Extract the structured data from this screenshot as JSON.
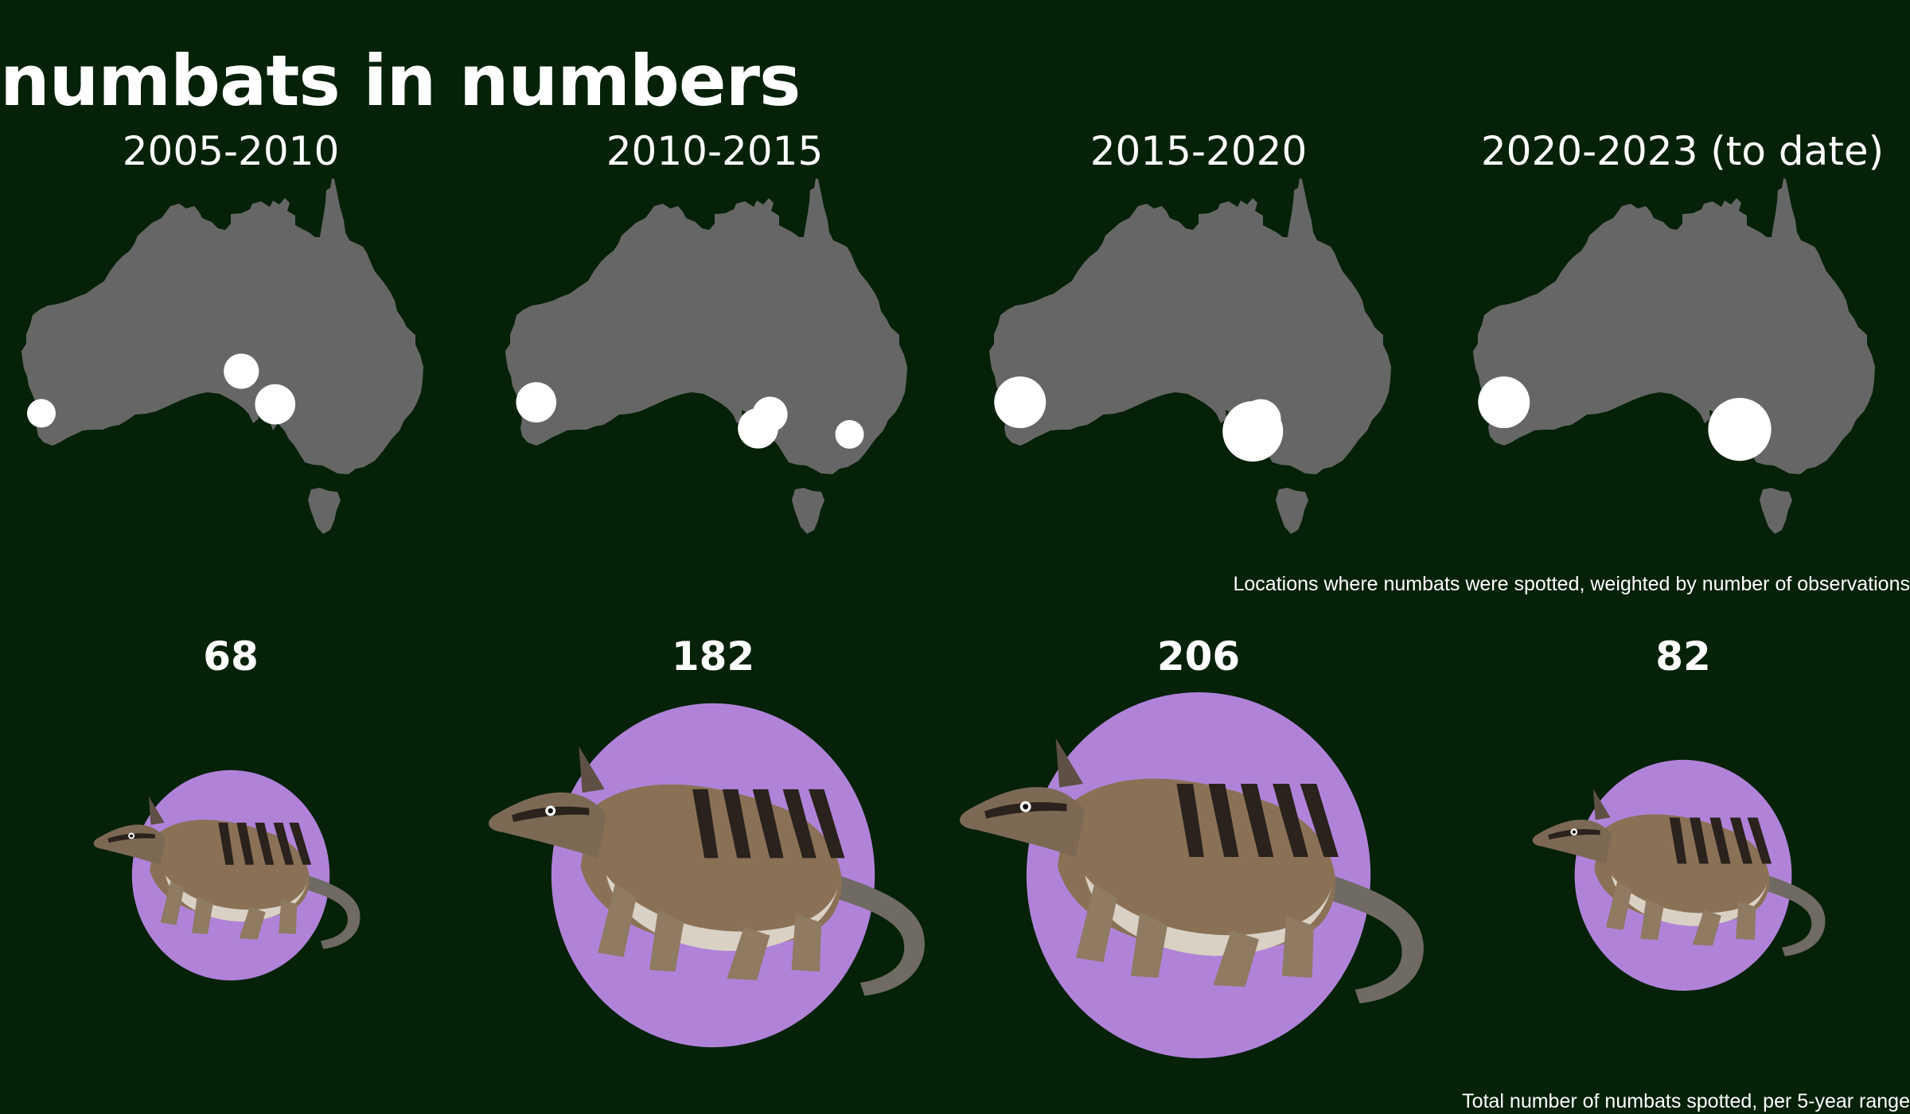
{
  "title": "numbats in numbers",
  "colors": {
    "background": "#052108",
    "land": "#666666",
    "marker": "#ffffff",
    "circle": "#b083d9"
  },
  "captions": {
    "maps": "Locations where numbats were spotted, weighted by number of observations",
    "totals": "Total number of numbats spotted, per 5-year range"
  },
  "chart_data": [
    {
      "type": "map-bubble",
      "description_key": "sightings per period",
      "periods": [
        {
          "label": "2005-2010",
          "points": [
            {
              "lon": 115.2,
              "lat": -33.2,
              "weight": 1
            },
            {
              "lon": 135.3,
              "lat": -29.0,
              "weight": 2
            },
            {
              "lon": 138.7,
              "lat": -32.3,
              "weight": 3
            }
          ]
        },
        {
          "label": "2010-2015",
          "points": [
            {
              "lon": 116.3,
              "lat": -32.1,
              "weight": 3
            },
            {
              "lon": 138.6,
              "lat": -34.7,
              "weight": 3
            },
            {
              "lon": 139.8,
              "lat": -33.3,
              "weight": 2
            },
            {
              "lon": 147.8,
              "lat": -35.3,
              "weight": 1
            }
          ]
        },
        {
          "label": "2015-2020",
          "points": [
            {
              "lon": 116.3,
              "lat": -32.1,
              "weight": 6
            },
            {
              "lon": 140.5,
              "lat": -33.8,
              "weight": 3
            },
            {
              "lon": 139.7,
              "lat": -35.0,
              "weight": 9
            }
          ]
        },
        {
          "label": "2020-2023 (to date)",
          "points": [
            {
              "lon": 116.3,
              "lat": -32.1,
              "weight": 6
            },
            {
              "lon": 140.0,
              "lat": -34.8,
              "weight": 10
            }
          ]
        }
      ]
    },
    {
      "type": "bubble",
      "categories": [
        "2005-2010",
        "2010-2015",
        "2015-2020",
        "2020-2023 (to date)"
      ],
      "values": [
        68,
        182,
        206,
        82
      ],
      "value_labels": [
        "68",
        "182",
        "206",
        "82"
      ]
    }
  ]
}
